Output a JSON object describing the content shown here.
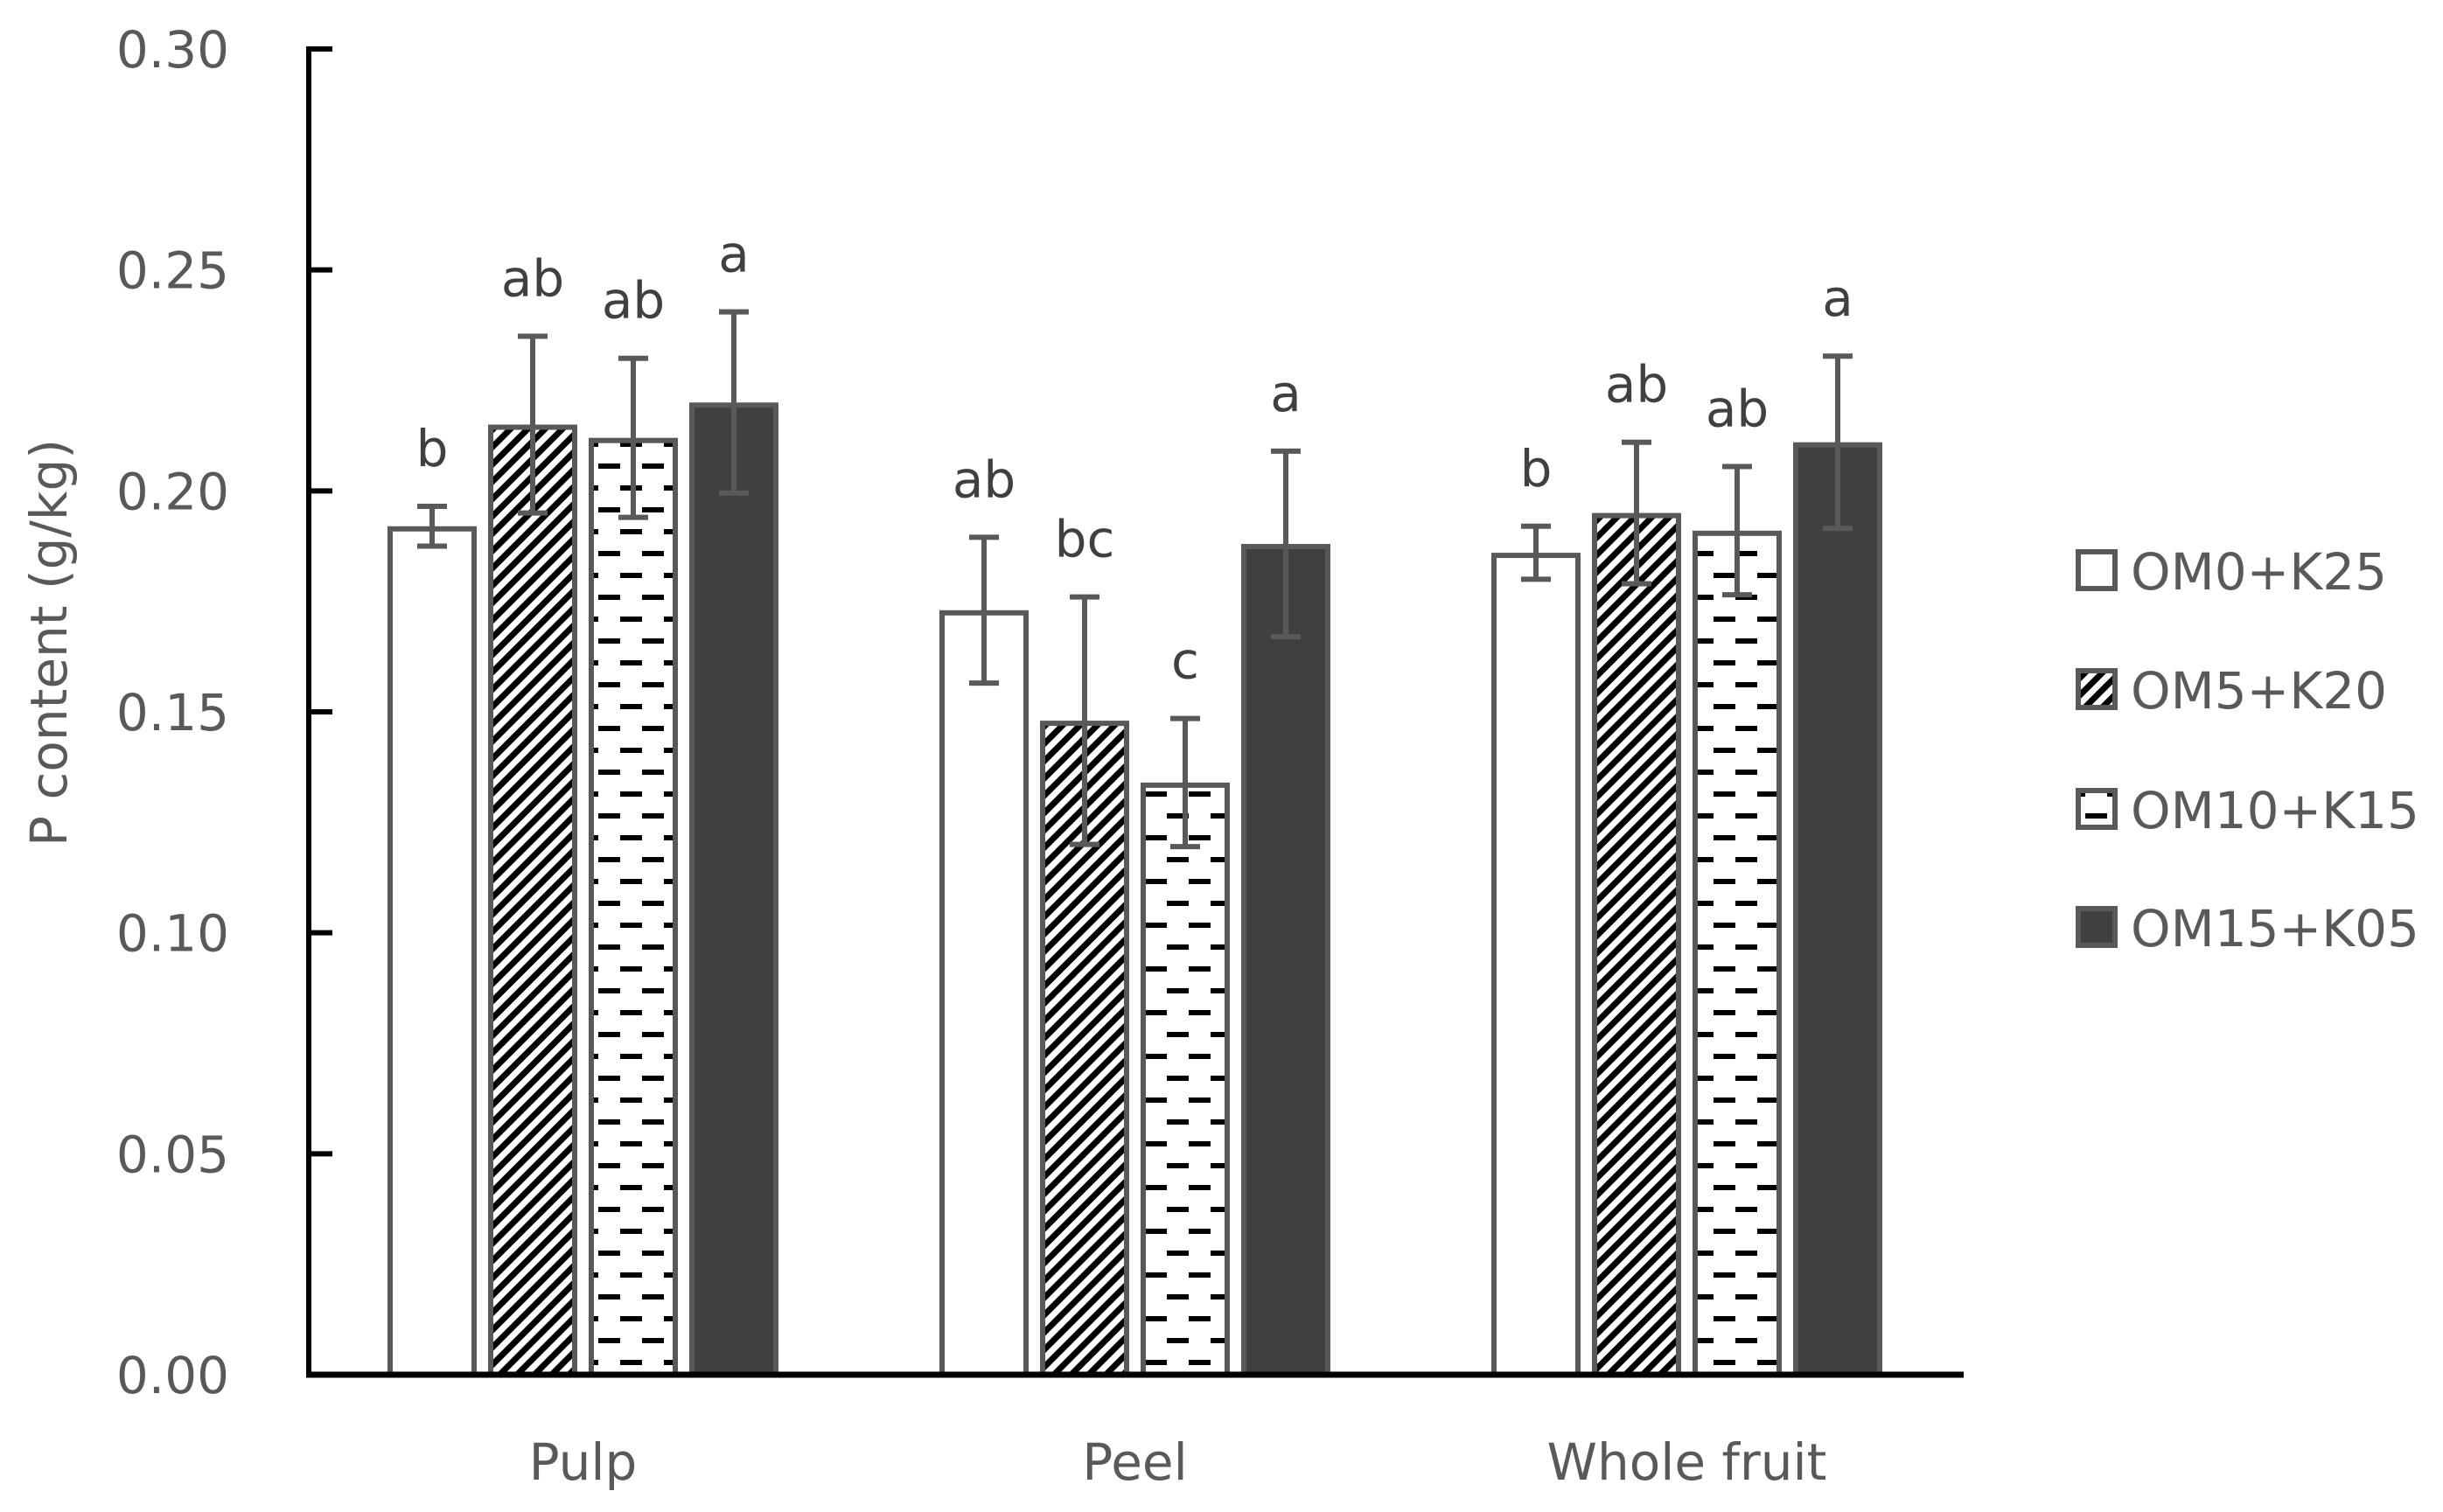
{
  "chart_data": {
    "type": "bar",
    "title": "",
    "xlabel": "",
    "ylabel": "P content (g/kg)",
    "ylim": [
      0,
      0.3
    ],
    "yticks": [
      "0.00",
      "0.05",
      "0.10",
      "0.15",
      "0.20",
      "0.25",
      "0.30"
    ],
    "ytick_values": [
      0,
      0.05,
      0.1,
      0.15,
      0.2,
      0.25,
      0.3
    ],
    "grid": false,
    "legend_position": "right",
    "categories": [
      "Pulp",
      "Peel",
      "Whole fruit"
    ],
    "series": [
      {
        "name": "OM0+K25",
        "pattern": "solid-white",
        "values": [
          0.192,
          0.173,
          0.186
        ],
        "errors": [
          0.0045,
          0.0165,
          0.006
        ],
        "significance": [
          "b",
          "ab",
          "b"
        ]
      },
      {
        "name": "OM5+K20",
        "pattern": "diagonal-stripes",
        "values": [
          0.215,
          0.148,
          0.195
        ],
        "errors": [
          0.02,
          0.028,
          0.016
        ],
        "significance": [
          "ab",
          "bc",
          "ab"
        ]
      },
      {
        "name": "OM10+K15",
        "pattern": "horizontal-dashes",
        "values": [
          0.212,
          0.134,
          0.191
        ],
        "errors": [
          0.018,
          0.0145,
          0.0145
        ],
        "significance": [
          "ab",
          "c",
          "ab"
        ]
      },
      {
        "name": "OM15+K05",
        "pattern": "solid-dark",
        "values": [
          0.22,
          0.188,
          0.211
        ],
        "errors": [
          0.0205,
          0.021,
          0.0195
        ],
        "significance": [
          "a",
          "a",
          "a"
        ]
      }
    ],
    "colors": {
      "axis": "#000000",
      "bar_border": "#595959",
      "dark_fill": "#404040",
      "hatch": "#000000",
      "error_bar": "#595959",
      "text": "#595959",
      "significance_text": "#404040"
    }
  },
  "axis": {
    "y_title": "P content (g/kg)"
  },
  "legend": {
    "items": [
      {
        "label": "OM0+K25"
      },
      {
        "label": "OM5+K20"
      },
      {
        "label": "OM10+K15"
      },
      {
        "label": "OM15+K05"
      }
    ]
  }
}
